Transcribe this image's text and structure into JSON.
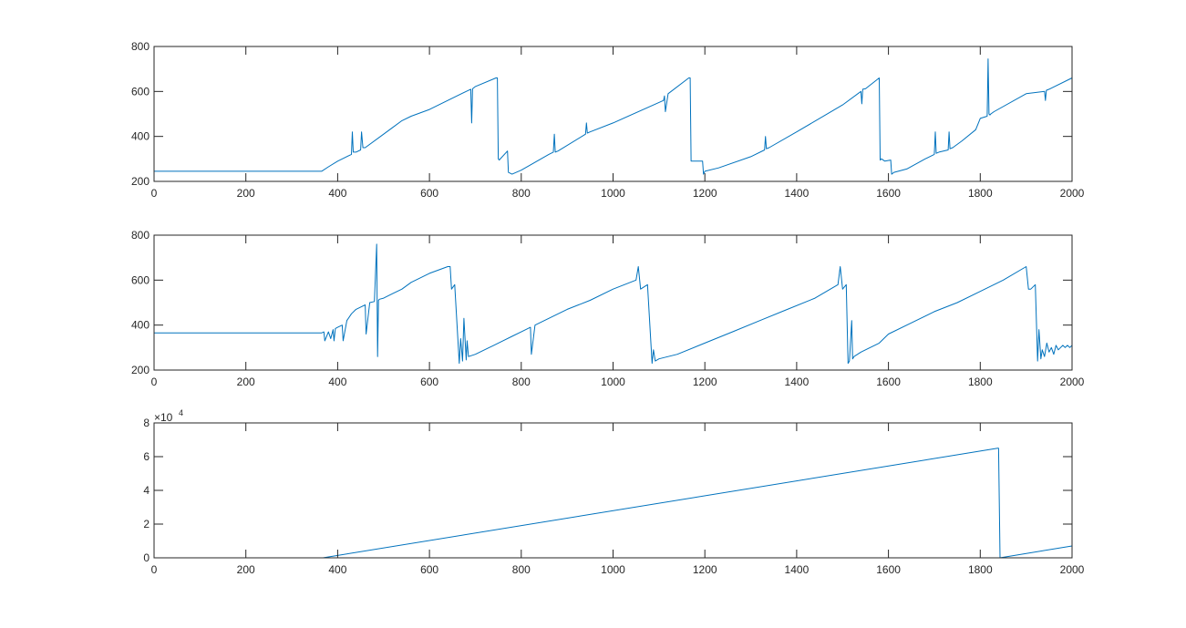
{
  "figure": {
    "background": "#ffffff",
    "axis_color": "#262626",
    "line_color": "#0072bd"
  },
  "chart_data": [
    {
      "type": "line",
      "title": "",
      "xlabel": "",
      "ylabel": "",
      "xlim": [
        0,
        2000
      ],
      "ylim": [
        200,
        800
      ],
      "grid": false,
      "xticks": [
        0,
        200,
        400,
        600,
        800,
        1000,
        1200,
        1400,
        1600,
        1800,
        2000
      ],
      "yticks": [
        200,
        400,
        600,
        800
      ],
      "xtick_labels": [
        "0",
        "200",
        "400",
        "600",
        "800",
        "1000",
        "1200",
        "1400",
        "1600",
        "1800",
        "2000"
      ],
      "ytick_labels": [
        "200",
        "400",
        "600",
        "800"
      ],
      "series": [
        {
          "x": [
            0,
            365,
            380,
            400,
            430,
            432,
            434,
            440,
            450,
            452,
            455,
            460,
            500,
            520,
            540,
            560,
            600,
            680,
            690,
            692,
            694,
            700,
            745,
            748,
            750,
            752,
            770,
            772,
            780,
            800,
            860,
            870,
            872,
            874,
            880,
            940,
            942,
            944,
            950,
            1000,
            1110,
            1112,
            1114,
            1120,
            1165,
            1168,
            1170,
            1195,
            1197,
            1200,
            1230,
            1300,
            1330,
            1332,
            1334,
            1340,
            1400,
            1500,
            1540,
            1542,
            1544,
            1550,
            1580,
            1582,
            1585,
            1592,
            1605,
            1607,
            1612,
            1640,
            1680,
            1700,
            1702,
            1704,
            1710,
            1730,
            1732,
            1734,
            1740,
            1760,
            1790,
            1800,
            1815,
            1817,
            1819,
            1821,
            1823,
            1830,
            1900,
            1940,
            1942,
            1944,
            1950,
            2000
          ],
          "y": [
            245,
            245,
            265,
            290,
            320,
            420,
            330,
            330,
            340,
            420,
            350,
            350,
            410,
            440,
            470,
            490,
            520,
            600,
            610,
            460,
            612,
            622,
            660,
            660,
            300,
            295,
            335,
            240,
            232,
            250,
            320,
            330,
            410,
            330,
            335,
            410,
            460,
            415,
            420,
            460,
            560,
            580,
            510,
            590,
            660,
            660,
            290,
            290,
            232,
            245,
            260,
            310,
            340,
            400,
            345,
            350,
            420,
            540,
            600,
            545,
            610,
            612,
            660,
            295,
            300,
            290,
            295,
            232,
            240,
            255,
            300,
            320,
            420,
            325,
            330,
            340,
            420,
            345,
            350,
            380,
            430,
            480,
            490,
            745,
            500,
            495,
            500,
            510,
            590,
            600,
            560,
            605,
            610,
            660
          ]
        }
      ]
    },
    {
      "type": "line",
      "title": "",
      "xlabel": "",
      "ylabel": "",
      "xlim": [
        0,
        2000
      ],
      "ylim": [
        200,
        800
      ],
      "grid": false,
      "xticks": [
        0,
        200,
        400,
        600,
        800,
        1000,
        1200,
        1400,
        1600,
        1800,
        2000
      ],
      "yticks": [
        200,
        400,
        600,
        800
      ],
      "xtick_labels": [
        "0",
        "200",
        "400",
        "600",
        "800",
        "1000",
        "1200",
        "1400",
        "1600",
        "1800",
        "2000"
      ],
      "ytick_labels": [
        "200",
        "400",
        "600",
        "800"
      ],
      "series": [
        {
          "x": [
            0,
            365,
            370,
            372,
            380,
            385,
            390,
            392,
            395,
            400,
            410,
            412,
            420,
            430,
            440,
            450,
            460,
            462,
            470,
            480,
            485,
            487,
            489,
            491,
            500,
            520,
            540,
            560,
            600,
            640,
            645,
            648,
            655,
            665,
            668,
            672,
            675,
            680,
            682,
            685,
            700,
            720,
            740,
            760,
            780,
            800,
            820,
            822,
            830,
            860,
            900,
            950,
            1000,
            1050,
            1055,
            1060,
            1075,
            1085,
            1088,
            1092,
            1100,
            1140,
            1200,
            1260,
            1320,
            1380,
            1440,
            1490,
            1495,
            1500,
            1508,
            1512,
            1515,
            1520,
            1522,
            1525,
            1540,
            1580,
            1600,
            1650,
            1700,
            1750,
            1800,
            1850,
            1900,
            1905,
            1910,
            1920,
            1925,
            1928,
            1932,
            1935,
            1940,
            1945,
            1950,
            1955,
            1960,
            1965,
            1970,
            1975,
            1980,
            1985,
            1990,
            1995,
            2000
          ],
          "y": [
            365,
            365,
            370,
            330,
            370,
            340,
            380,
            330,
            385,
            390,
            400,
            330,
            420,
            450,
            470,
            480,
            490,
            360,
            500,
            505,
            760,
            260,
            510,
            515,
            520,
            540,
            560,
            590,
            630,
            660,
            660,
            560,
            580,
            230,
            340,
            240,
            430,
            245,
            330,
            260,
            270,
            290,
            310,
            330,
            350,
            370,
            390,
            270,
            400,
            430,
            470,
            510,
            560,
            600,
            660,
            560,
            580,
            230,
            290,
            240,
            250,
            270,
            320,
            370,
            420,
            470,
            520,
            580,
            660,
            560,
            580,
            230,
            240,
            420,
            250,
            260,
            280,
            320,
            360,
            410,
            460,
            500,
            550,
            600,
            660,
            560,
            560,
            580,
            240,
            380,
            250,
            290,
            260,
            320,
            280,
            300,
            270,
            310,
            290,
            300,
            310,
            300,
            310,
            300,
            310
          ]
        }
      ]
    },
    {
      "type": "line",
      "title": "",
      "xlabel": "",
      "ylabel": "",
      "xlim": [
        0,
        2000
      ],
      "ylim": [
        0,
        80000
      ],
      "grid": false,
      "xticks": [
        0,
        200,
        400,
        600,
        800,
        1000,
        1200,
        1400,
        1600,
        1800,
        2000
      ],
      "yticks": [
        0,
        20000,
        40000,
        60000,
        80000
      ],
      "xtick_labels": [
        "0",
        "200",
        "400",
        "600",
        "800",
        "1000",
        "1200",
        "1400",
        "1600",
        "1800",
        "2000"
      ],
      "ytick_labels": [
        "0",
        "2",
        "4",
        "6",
        "8"
      ],
      "exponent_base": "×10",
      "exponent_power": "4",
      "series": [
        {
          "x": [
            0,
            368,
            1838,
            1840,
            1843,
            2000
          ],
          "y": [
            0,
            0,
            65000,
            65000,
            0,
            7000
          ]
        }
      ]
    }
  ]
}
